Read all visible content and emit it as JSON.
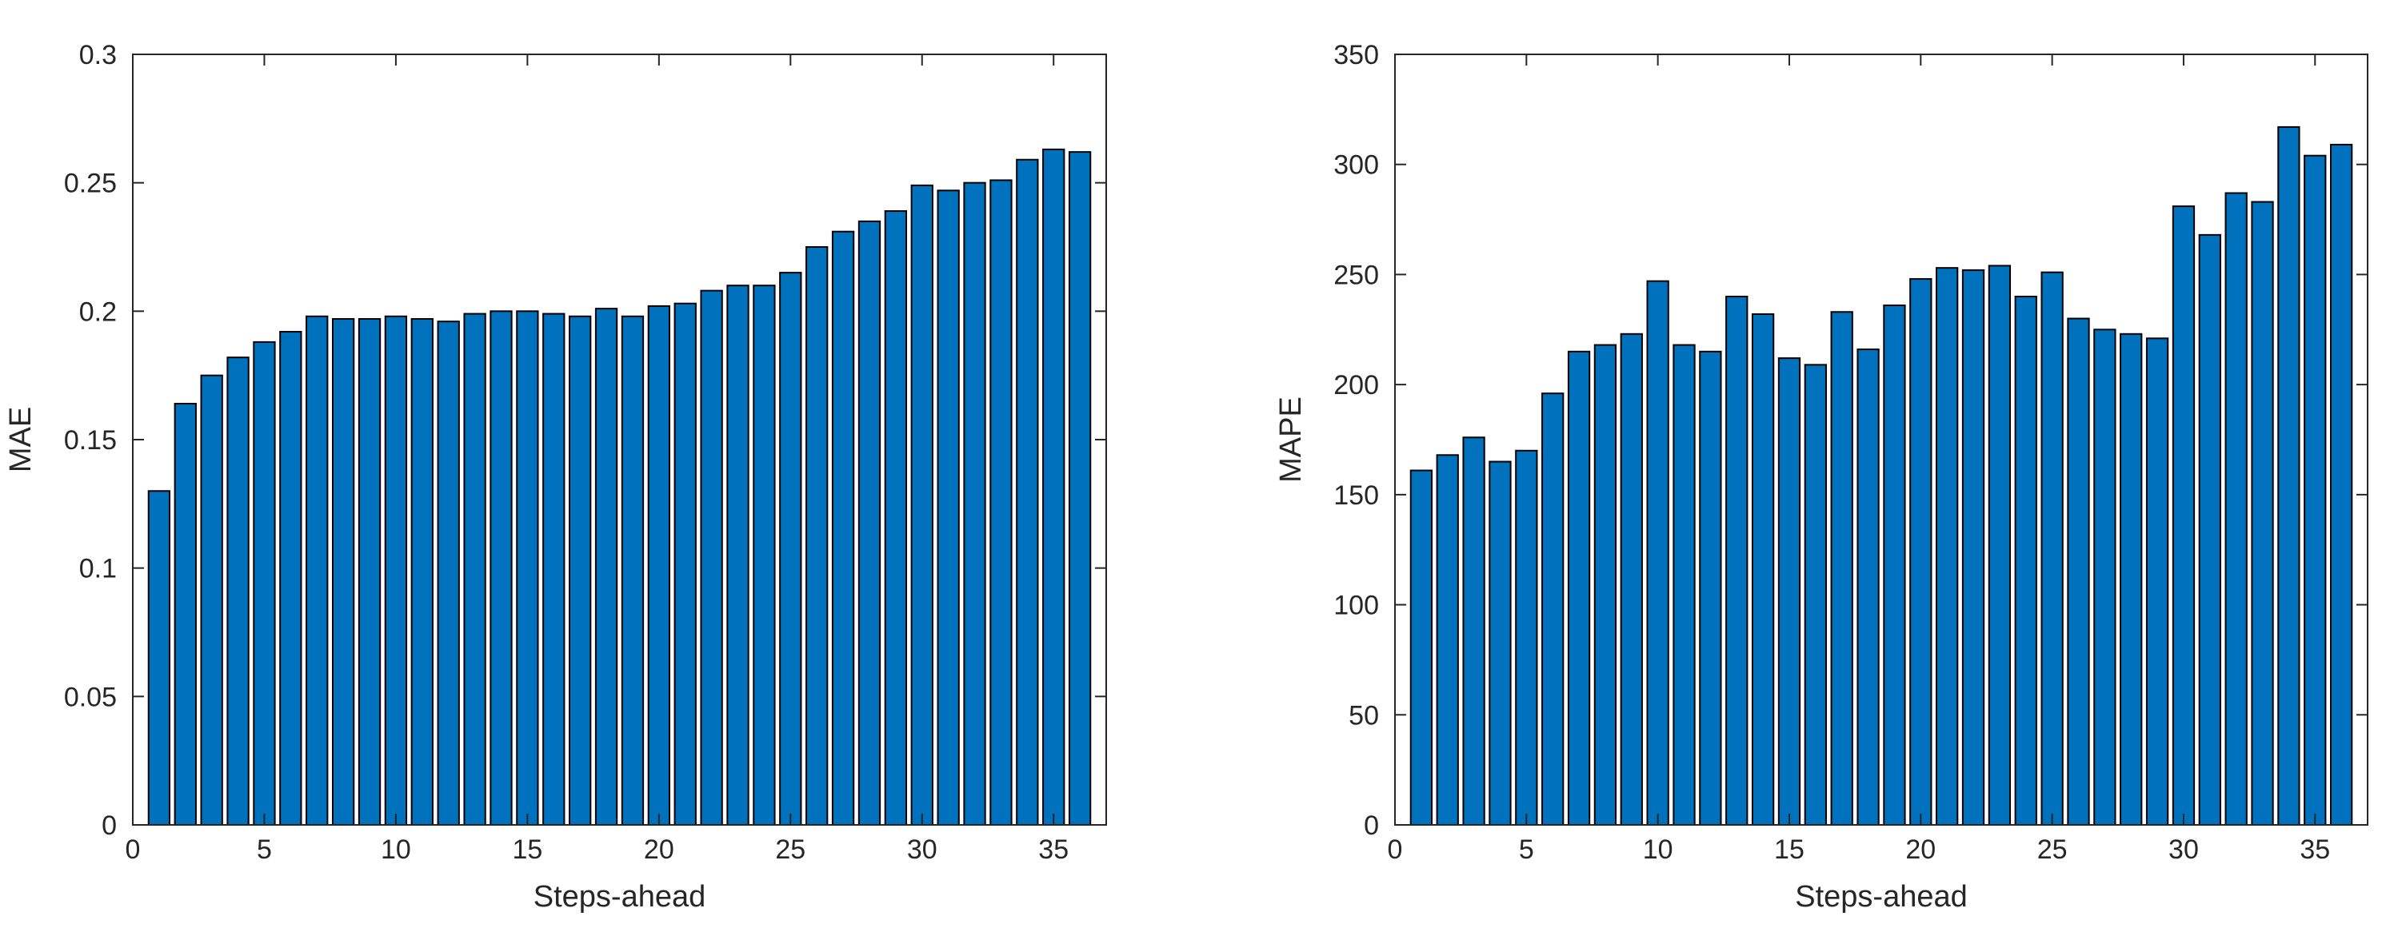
{
  "figure": {
    "background": "#ffffff"
  },
  "chart_data": [
    {
      "type": "bar",
      "title": "",
      "xlabel": "Steps-ahead",
      "ylabel": "MAE",
      "xlim": [
        0,
        37
      ],
      "ylim": [
        0,
        0.3
      ],
      "x_ticks": [
        0,
        5,
        10,
        15,
        20,
        25,
        30,
        35
      ],
      "x_tick_labels": [
        "0",
        "5",
        "10",
        "15",
        "20",
        "25",
        "30",
        "35"
      ],
      "y_ticks": [
        0,
        0.05,
        0.1,
        0.15,
        0.2,
        0.25,
        0.3
      ],
      "y_tick_labels": [
        "0",
        "0.05",
        "0.1",
        "0.15",
        "0.2",
        "0.25",
        "0.3"
      ],
      "grid": false,
      "bar_color": "#0072BD",
      "edge_color": "#000000",
      "categories": [
        1,
        2,
        3,
        4,
        5,
        6,
        7,
        8,
        9,
        10,
        11,
        12,
        13,
        14,
        15,
        16,
        17,
        18,
        19,
        20,
        21,
        22,
        23,
        24,
        25,
        26,
        27,
        28,
        29,
        30,
        31,
        32,
        33,
        34,
        35,
        36
      ],
      "values": [
        0.13,
        0.164,
        0.175,
        0.182,
        0.188,
        0.192,
        0.198,
        0.197,
        0.197,
        0.198,
        0.197,
        0.196,
        0.199,
        0.2,
        0.2,
        0.199,
        0.198,
        0.201,
        0.198,
        0.202,
        0.203,
        0.208,
        0.21,
        0.21,
        0.215,
        0.225,
        0.231,
        0.235,
        0.239,
        0.249,
        0.247,
        0.25,
        0.251,
        0.259,
        0.263,
        0.262
      ]
    },
    {
      "type": "bar",
      "title": "",
      "xlabel": "Steps-ahead",
      "ylabel": "MAPE",
      "xlim": [
        0,
        37
      ],
      "ylim": [
        0,
        350
      ],
      "x_ticks": [
        0,
        5,
        10,
        15,
        20,
        25,
        30,
        35
      ],
      "x_tick_labels": [
        "0",
        "5",
        "10",
        "15",
        "20",
        "25",
        "30",
        "35"
      ],
      "y_ticks": [
        0,
        50,
        100,
        150,
        200,
        250,
        300,
        350
      ],
      "y_tick_labels": [
        "0",
        "50",
        "100",
        "150",
        "200",
        "250",
        "300",
        "350"
      ],
      "grid": false,
      "bar_color": "#0072BD",
      "edge_color": "#000000",
      "categories": [
        1,
        2,
        3,
        4,
        5,
        6,
        7,
        8,
        9,
        10,
        11,
        12,
        13,
        14,
        15,
        16,
        17,
        18,
        19,
        20,
        21,
        22,
        23,
        24,
        25,
        26,
        27,
        28,
        29,
        30,
        31,
        32,
        33,
        34,
        35,
        36
      ],
      "values": [
        161,
        168,
        176,
        165,
        170,
        196,
        215,
        218,
        223,
        247,
        218,
        215,
        240,
        232,
        212,
        209,
        233,
        216,
        236,
        248,
        253,
        252,
        254,
        240,
        251,
        230,
        225,
        223,
        221,
        281,
        268,
        287,
        283,
        317,
        304,
        309
      ]
    }
  ]
}
